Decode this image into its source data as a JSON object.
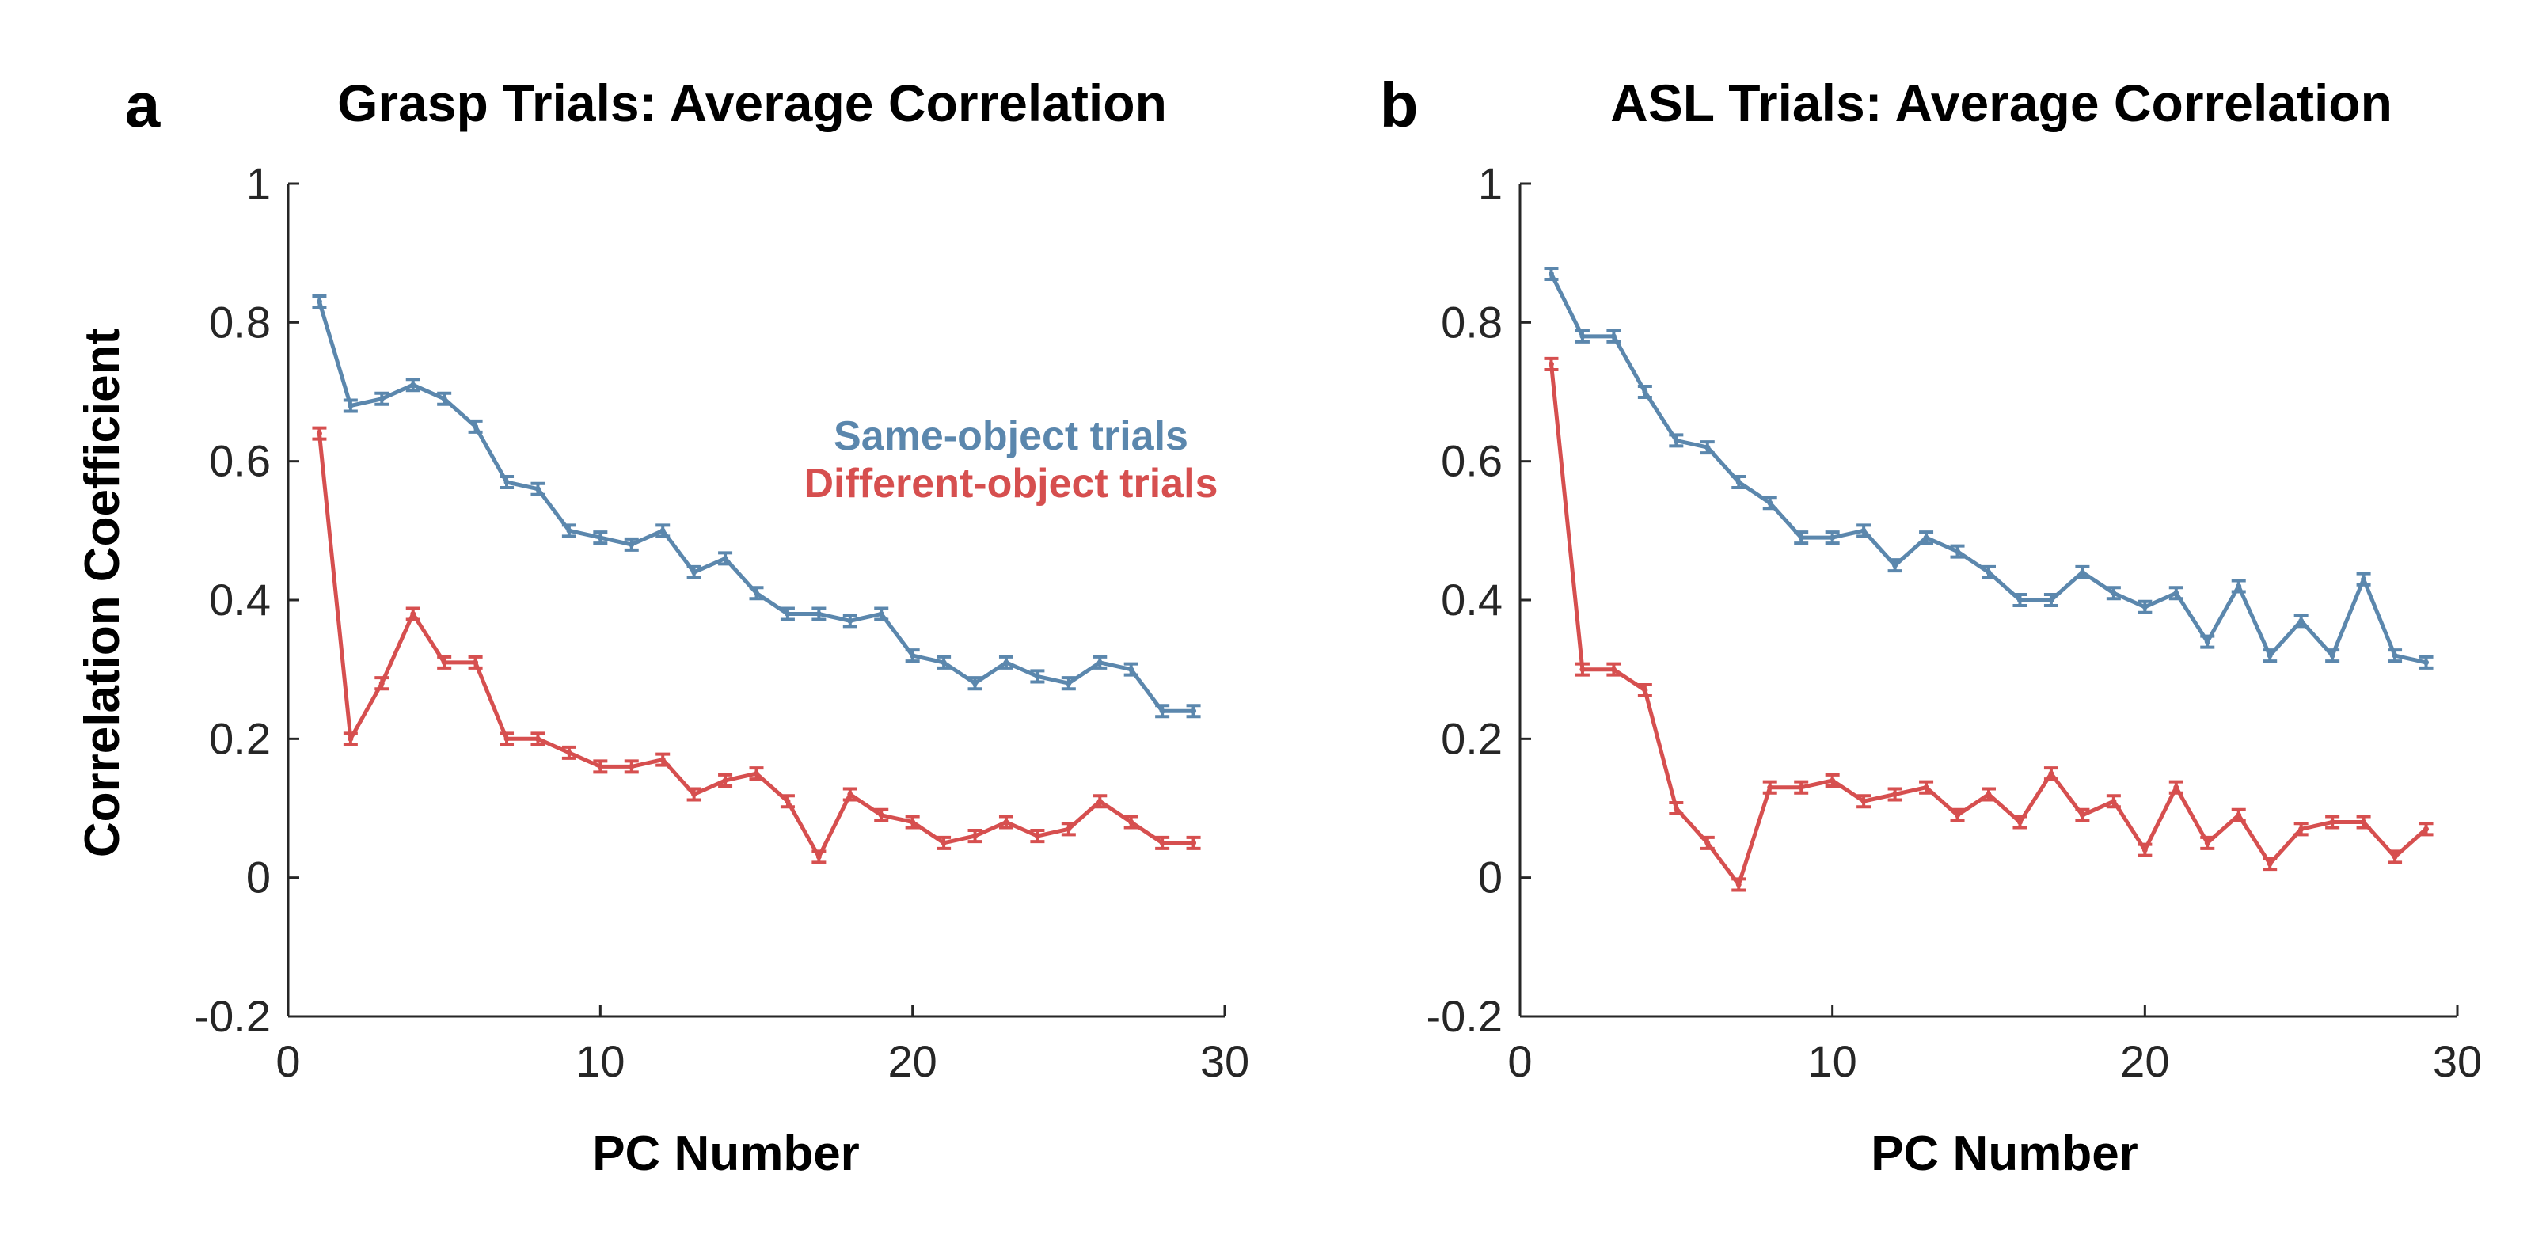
{
  "chart_data": [
    {
      "type": "line",
      "panel_label": "a",
      "title": "Grasp Trials: Average Correlation",
      "xlabel": "PC Number",
      "ylabel": "Correlation Coefficient",
      "xlim": [
        0,
        30
      ],
      "ylim": [
        -0.2,
        1
      ],
      "xticks": [
        "0",
        "10",
        "20",
        "30"
      ],
      "yticks": [
        "-0.2",
        "0",
        "0.2",
        "0.4",
        "0.6",
        "0.8",
        "1"
      ],
      "grid": false,
      "legend_placement": "center-right",
      "x": [
        1,
        2,
        3,
        4,
        5,
        6,
        7,
        8,
        9,
        10,
        11,
        12,
        13,
        14,
        15,
        16,
        17,
        18,
        19,
        20,
        21,
        22,
        23,
        24,
        25,
        26,
        27,
        28,
        29
      ],
      "series": [
        {
          "name": "Same-object trials",
          "color": "#5b87ad",
          "values": [
            0.83,
            0.68,
            0.69,
            0.71,
            0.69,
            0.65,
            0.57,
            0.56,
            0.5,
            0.49,
            0.48,
            0.5,
            0.44,
            0.46,
            0.41,
            0.38,
            0.38,
            0.37,
            0.38,
            0.32,
            0.31,
            0.28,
            0.31,
            0.29,
            0.28,
            0.31,
            0.3,
            0.24,
            0.24
          ],
          "error": [
            0.008,
            0.008,
            0.008,
            0.008,
            0.008,
            0.008,
            0.008,
            0.008,
            0.008,
            0.008,
            0.008,
            0.008,
            0.008,
            0.008,
            0.008,
            0.008,
            0.008,
            0.008,
            0.008,
            0.008,
            0.008,
            0.008,
            0.008,
            0.008,
            0.008,
            0.008,
            0.008,
            0.008,
            0.008
          ]
        },
        {
          "name": "Different-object trials",
          "color": "#d64f4f",
          "values": [
            0.64,
            0.2,
            0.28,
            0.38,
            0.31,
            0.31,
            0.2,
            0.2,
            0.18,
            0.16,
            0.16,
            0.17,
            0.12,
            0.14,
            0.15,
            0.11,
            0.03,
            0.12,
            0.09,
            0.08,
            0.05,
            0.06,
            0.08,
            0.06,
            0.07,
            0.11,
            0.08,
            0.05,
            0.05
          ],
          "error": [
            0.008,
            0.008,
            0.008,
            0.008,
            0.008,
            0.008,
            0.008,
            0.008,
            0.008,
            0.008,
            0.008,
            0.008,
            0.008,
            0.008,
            0.008,
            0.008,
            0.008,
            0.008,
            0.008,
            0.008,
            0.008,
            0.008,
            0.008,
            0.008,
            0.008,
            0.008,
            0.008,
            0.008,
            0.008
          ]
        }
      ]
    },
    {
      "type": "line",
      "panel_label": "b",
      "title": "ASL Trials: Average Correlation",
      "xlabel": "PC Number",
      "ylabel": "",
      "xlim": [
        0,
        30
      ],
      "ylim": [
        -0.2,
        1
      ],
      "xticks": [
        "0",
        "10",
        "20",
        "30"
      ],
      "yticks": [
        "-0.2",
        "0",
        "0.2",
        "0.4",
        "0.6",
        "0.8",
        "1"
      ],
      "grid": false,
      "x": [
        1,
        2,
        3,
        4,
        5,
        6,
        7,
        8,
        9,
        10,
        11,
        12,
        13,
        14,
        15,
        16,
        17,
        18,
        19,
        20,
        21,
        22,
        23,
        24,
        25,
        26,
        27,
        28,
        29
      ],
      "series": [
        {
          "name": "Same-object trials",
          "color": "#5b87ad",
          "values": [
            0.87,
            0.78,
            0.78,
            0.7,
            0.63,
            0.62,
            0.57,
            0.54,
            0.49,
            0.49,
            0.5,
            0.45,
            0.49,
            0.47,
            0.44,
            0.4,
            0.4,
            0.44,
            0.41,
            0.39,
            0.41,
            0.34,
            0.42,
            0.32,
            0.37,
            0.32,
            0.43,
            0.32,
            0.31
          ],
          "error": [
            0.008,
            0.008,
            0.008,
            0.008,
            0.008,
            0.008,
            0.008,
            0.008,
            0.008,
            0.008,
            0.008,
            0.008,
            0.008,
            0.008,
            0.008,
            0.008,
            0.008,
            0.008,
            0.008,
            0.008,
            0.008,
            0.008,
            0.008,
            0.008,
            0.008,
            0.008,
            0.008,
            0.008,
            0.008
          ]
        },
        {
          "name": "Different-object trials",
          "color": "#d64f4f",
          "values": [
            0.74,
            0.3,
            0.3,
            0.27,
            0.1,
            0.05,
            -0.01,
            0.13,
            0.13,
            0.14,
            0.11,
            0.12,
            0.13,
            0.09,
            0.12,
            0.08,
            0.15,
            0.09,
            0.11,
            0.04,
            0.13,
            0.05,
            0.09,
            0.02,
            0.07,
            0.08,
            0.08,
            0.03,
            0.07
          ],
          "error": [
            0.008,
            0.008,
            0.008,
            0.008,
            0.008,
            0.008,
            0.008,
            0.008,
            0.008,
            0.008,
            0.008,
            0.008,
            0.008,
            0.008,
            0.008,
            0.008,
            0.008,
            0.008,
            0.008,
            0.008,
            0.008,
            0.008,
            0.008,
            0.008,
            0.008,
            0.008,
            0.008,
            0.008,
            0.008
          ]
        }
      ]
    }
  ]
}
